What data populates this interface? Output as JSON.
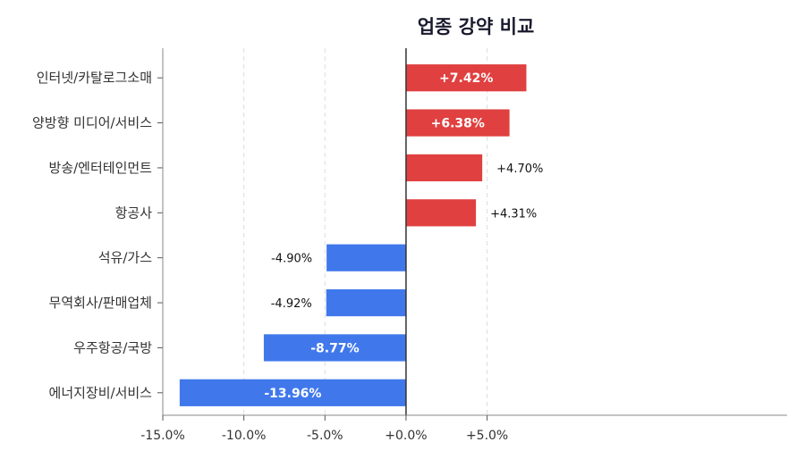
{
  "chart_data": {
    "type": "bar",
    "orientation": "horizontal",
    "title": "업종 강약 비교",
    "xlabel": "",
    "ylabel": "",
    "xlim": [
      -15,
      23.5
    ],
    "xticks": [
      -15,
      -10,
      -5,
      0,
      5
    ],
    "xtick_labels": [
      "-15.0%",
      "-10.0%",
      "-5.0%",
      "+0.0%",
      "+5.0%"
    ],
    "grid": "vertical dashed",
    "colors": {
      "positive": "#e04040",
      "negative": "#4078ec",
      "zero_line": "#333333"
    },
    "categories": [
      "인터넷/카탈로그소매",
      "양방향 미디어/서비스",
      "방송/엔터테인먼트",
      "항공사",
      "석유/가스",
      "무역회사/판매업체",
      "우주항공/국방",
      "에너지장비/서비스"
    ],
    "values": [
      7.42,
      6.38,
      4.7,
      4.31,
      -4.9,
      -4.92,
      -8.77,
      -13.96
    ],
    "value_labels": [
      "+7.42%",
      "+6.38%",
      "+4.70%",
      "+4.31%",
      "-4.90%",
      "-4.92%",
      "-8.77%",
      "-13.96%"
    ],
    "label_inside": [
      true,
      true,
      false,
      false,
      false,
      false,
      true,
      true
    ]
  }
}
